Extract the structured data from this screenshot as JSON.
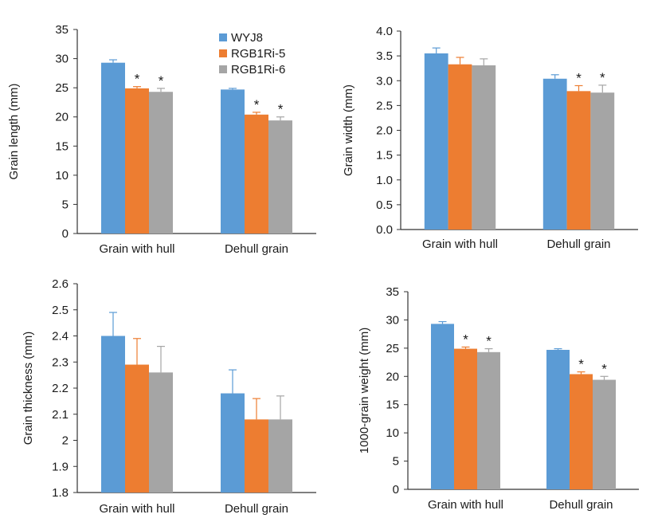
{
  "colors": {
    "WYJ8": "#5b9bd5",
    "RGB1Ri-5": "#ed7d31",
    "RGB1Ri-6": "#a5a5a5",
    "axis": "#333333"
  },
  "chart_data": [
    {
      "type": "bar",
      "ylabel": "Grain length (mm)",
      "ylim": [
        0,
        35
      ],
      "ystep": 5,
      "tick_decimals": 0,
      "categories": [
        "Grain with hull",
        "Dehull grain"
      ],
      "series": [
        {
          "name": "WYJ8",
          "values": [
            29.3,
            24.7
          ],
          "errors": [
            0.5,
            0.2
          ],
          "significant": [
            false,
            false
          ]
        },
        {
          "name": "RGB1Ri-5",
          "values": [
            24.9,
            20.4
          ],
          "errors": [
            0.3,
            0.4
          ],
          "significant": [
            true,
            true
          ]
        },
        {
          "name": "RGB1Ri-6",
          "values": [
            24.3,
            19.4
          ],
          "errors": [
            0.6,
            0.6
          ],
          "significant": [
            true,
            true
          ]
        }
      ],
      "legend": "top-center"
    },
    {
      "type": "bar",
      "ylabel": "Grain width (mm)",
      "ylim": [
        0,
        4
      ],
      "ystep": 0.5,
      "tick_decimals": 1,
      "categories": [
        "Grain with hull",
        "Dehull grain"
      ],
      "series": [
        {
          "name": "WYJ8",
          "values": [
            3.55,
            3.04
          ],
          "errors": [
            0.11,
            0.08
          ],
          "significant": [
            false,
            false
          ]
        },
        {
          "name": "RGB1Ri-5",
          "values": [
            3.33,
            2.79
          ],
          "errors": [
            0.14,
            0.11
          ],
          "significant": [
            false,
            true
          ]
        },
        {
          "name": "RGB1Ri-6",
          "values": [
            3.31,
            2.76
          ],
          "errors": [
            0.13,
            0.15
          ],
          "significant": [
            false,
            true
          ]
        }
      ]
    },
    {
      "type": "bar",
      "ylabel": "Grain thickness (mm)",
      "ylim": [
        1.8,
        2.6
      ],
      "ystep": 0.1,
      "tick_decimals": 1,
      "integer_label_no_decimal": true,
      "categories": [
        "Grain with hull",
        "Dehull grain"
      ],
      "series": [
        {
          "name": "WYJ8",
          "values": [
            2.4,
            2.18
          ],
          "errors": [
            0.09,
            0.09
          ],
          "significant": [
            false,
            false
          ]
        },
        {
          "name": "RGB1Ri-5",
          "values": [
            2.29,
            2.08
          ],
          "errors": [
            0.1,
            0.08
          ],
          "significant": [
            false,
            false
          ]
        },
        {
          "name": "RGB1Ri-6",
          "values": [
            2.26,
            2.08
          ],
          "errors": [
            0.1,
            0.09
          ],
          "significant": [
            false,
            false
          ]
        }
      ]
    },
    {
      "type": "bar",
      "ylabel": "1000-grain weight (mm)",
      "ylim": [
        0,
        35
      ],
      "ystep": 5,
      "tick_decimals": 0,
      "categories": [
        "Grain with hull",
        "Dehull grain"
      ],
      "series": [
        {
          "name": "WYJ8",
          "values": [
            29.3,
            24.7
          ],
          "errors": [
            0.4,
            0.2
          ],
          "significant": [
            false,
            false
          ]
        },
        {
          "name": "RGB1Ri-5",
          "values": [
            24.9,
            20.4
          ],
          "errors": [
            0.3,
            0.4
          ],
          "significant": [
            true,
            true
          ]
        },
        {
          "name": "RGB1Ri-6",
          "values": [
            24.3,
            19.4
          ],
          "errors": [
            0.6,
            0.6
          ],
          "significant": [
            true,
            true
          ]
        }
      ]
    }
  ],
  "significance_marker": "*"
}
